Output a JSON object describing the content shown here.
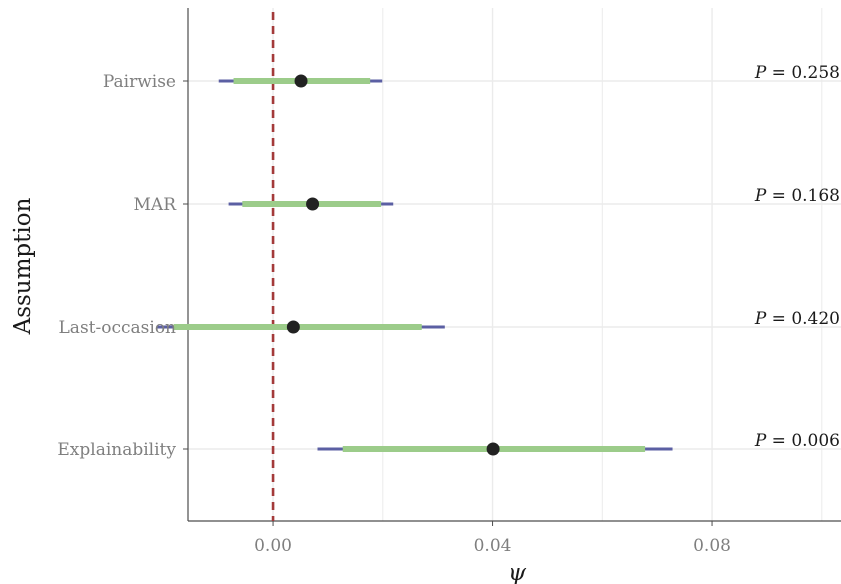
{
  "chart_data": {
    "type": "forest",
    "xlabel": "ψ",
    "ylabel": "Assumption",
    "xlim": [
      -0.0155,
      0.1035
    ],
    "x_ticks": [
      0.0,
      0.04,
      0.08
    ],
    "x_tick_labels": [
      "0.00",
      "0.04",
      "0.08"
    ],
    "reference_line_x": 0.0,
    "grid": true,
    "colors": {
      "outer_interval": "#5b5fa3",
      "inner_interval": "#9ccc8a",
      "point": "#222222",
      "reference_line": "#a33a3a",
      "grid": "#ebebeb",
      "axis": "#4d4d4d"
    },
    "rows": [
      {
        "label": "Pairwise",
        "estimate": 0.0051,
        "inner_ci": [
          -0.0072,
          0.0177
        ],
        "outer_ci": [
          -0.0099,
          0.0199
        ],
        "p_text": "P = 0.258",
        "p_symbol": "P",
        "p_value": "= 0.258"
      },
      {
        "label": "MAR",
        "estimate": 0.0072,
        "inner_ci": [
          -0.0056,
          0.0197
        ],
        "outer_ci": [
          -0.0081,
          0.0219
        ],
        "p_text": "P = 0.168",
        "p_symbol": "P",
        "p_value": "= 0.168"
      },
      {
        "label": "Last-occasion",
        "estimate": 0.0037,
        "inner_ci": [
          -0.0181,
          0.0271
        ],
        "outer_ci": [
          -0.0211,
          0.0313
        ],
        "p_text": "P = 0.420",
        "p_symbol": "P",
        "p_value": "= 0.420"
      },
      {
        "label": "Explainability",
        "estimate": 0.0401,
        "inner_ci": [
          0.0127,
          0.0678
        ],
        "outer_ci": [
          0.0081,
          0.0728
        ],
        "p_text": "P = 0.006",
        "p_symbol": "P",
        "p_value": "= 0.006"
      }
    ]
  }
}
